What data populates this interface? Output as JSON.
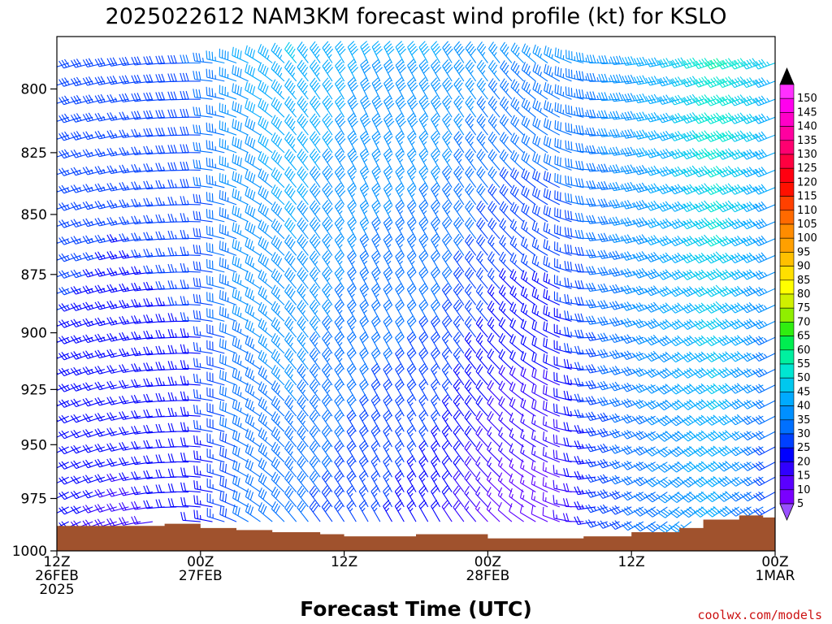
{
  "chart_data": {
    "type": "wind_barb_time_height",
    "title": "2025022612 NAM3KM forecast wind profile (kt) for KSLO",
    "xlabel": "Forecast Time (UTC)",
    "credit": "coolwx.com/models",
    "x_hours_range": [
      0,
      60
    ],
    "x_ticks": [
      {
        "hour": 0,
        "lines": [
          "12Z",
          "26FEB",
          "2025"
        ]
      },
      {
        "hour": 12,
        "lines": [
          "00Z",
          "27FEB"
        ]
      },
      {
        "hour": 24,
        "lines": [
          "12Z"
        ]
      },
      {
        "hour": 36,
        "lines": [
          "00Z",
          "28FEB"
        ]
      },
      {
        "hour": 48,
        "lines": [
          "12Z"
        ]
      },
      {
        "hour": 60,
        "lines": [
          "00Z",
          "1MAR"
        ]
      }
    ],
    "y_axis": {
      "scale": "log_pressure",
      "top_hpa": 780,
      "bottom_hpa": 1000
    },
    "y_ticks": [
      800,
      825,
      850,
      875,
      900,
      925,
      950,
      975,
      1000
    ],
    "colorbar": {
      "levels": [
        5,
        10,
        15,
        20,
        25,
        30,
        35,
        40,
        45,
        50,
        55,
        60,
        65,
        70,
        75,
        80,
        85,
        90,
        95,
        100,
        105,
        110,
        115,
        120,
        125,
        130,
        135,
        140,
        145,
        150
      ],
      "colors": [
        "#7a00ff",
        "#5a00ff",
        "#3000ff",
        "#0000ff",
        "#0040ff",
        "#0070ff",
        "#0090ff",
        "#00aaff",
        "#00c8ee",
        "#00e6d2",
        "#00f0a0",
        "#00ee50",
        "#30ee10",
        "#90ee00",
        "#d0f000",
        "#ffff00",
        "#ffe000",
        "#ffc000",
        "#ffa000",
        "#ff8c00",
        "#ff6a00",
        "#ff4000",
        "#ff1000",
        "#ff0010",
        "#ff0040",
        "#ff0070",
        "#ff00a0",
        "#ff00c8",
        "#ff00ee",
        "#ff30ff"
      ],
      "over_color": "#000000",
      "under_color": "#9a50ff"
    },
    "terrain": {
      "color": "#a0522d",
      "surface_pressure": [
        {
          "hour": 0,
          "hpa": 988
        },
        {
          "hour": 6,
          "hpa": 988
        },
        {
          "hour": 9,
          "hpa": 987
        },
        {
          "hour": 12,
          "hpa": 989
        },
        {
          "hour": 15,
          "hpa": 990
        },
        {
          "hour": 18,
          "hpa": 991
        },
        {
          "hour": 22,
          "hpa": 992
        },
        {
          "hour": 24,
          "hpa": 993
        },
        {
          "hour": 28,
          "hpa": 993
        },
        {
          "hour": 30,
          "hpa": 992
        },
        {
          "hour": 35,
          "hpa": 992
        },
        {
          "hour": 36,
          "hpa": 994
        },
        {
          "hour": 40,
          "hpa": 994
        },
        {
          "hour": 44,
          "hpa": 993
        },
        {
          "hour": 48,
          "hpa": 991
        },
        {
          "hour": 52,
          "hpa": 989
        },
        {
          "hour": 54,
          "hpa": 985
        },
        {
          "hour": 57,
          "hpa": 983
        },
        {
          "hour": 59,
          "hpa": 984
        },
        {
          "hour": 60,
          "hpa": 985
        }
      ]
    },
    "wind_keyframes": [
      {
        "hour": 0,
        "low": {
          "dir": 240,
          "spd": 20
        },
        "high": {
          "dir": 250,
          "spd": 30
        }
      },
      {
        "hour": 6,
        "low": {
          "dir": 255,
          "spd": 18
        },
        "high": {
          "dir": 260,
          "spd": 28
        }
      },
      {
        "hour": 12,
        "low": {
          "dir": 275,
          "spd": 20
        },
        "high": {
          "dir": 270,
          "spd": 30
        }
      },
      {
        "hour": 16,
        "low": {
          "dir": 300,
          "spd": 30
        },
        "high": {
          "dir": 295,
          "spd": 40
        }
      },
      {
        "hour": 20,
        "low": {
          "dir": 320,
          "spd": 30
        },
        "high": {
          "dir": 320,
          "spd": 45
        }
      },
      {
        "hour": 26,
        "low": {
          "dir": 330,
          "spd": 25
        },
        "high": {
          "dir": 335,
          "spd": 40
        }
      },
      {
        "hour": 32,
        "low": {
          "dir": 330,
          "spd": 20
        },
        "high": {
          "dir": 330,
          "spd": 40
        }
      },
      {
        "hour": 38,
        "low": {
          "dir": 310,
          "spd": 10
        },
        "high": {
          "dir": 320,
          "spd": 35
        }
      },
      {
        "hour": 42,
        "low": {
          "dir": 290,
          "spd": 10
        },
        "high": {
          "dir": 300,
          "spd": 35
        }
      },
      {
        "hour": 46,
        "low": {
          "dir": 250,
          "spd": 25
        },
        "high": {
          "dir": 270,
          "spd": 35
        }
      },
      {
        "hour": 52,
        "low": {
          "dir": 230,
          "spd": 35
        },
        "high": {
          "dir": 255,
          "spd": 45
        }
      },
      {
        "hour": 56,
        "low": {
          "dir": 235,
          "spd": 40
        },
        "high": {
          "dir": 250,
          "spd": 55
        }
      },
      {
        "hour": 60,
        "low": {
          "dir": 240,
          "spd": 25
        },
        "high": {
          "dir": 250,
          "spd": 45
        }
      }
    ]
  }
}
